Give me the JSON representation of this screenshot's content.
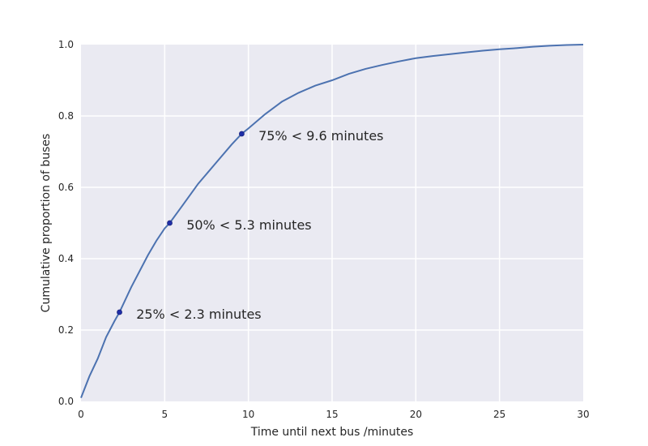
{
  "chart_data": {
    "type": "line",
    "title": "",
    "xlabel": "Time until next bus /minutes",
    "ylabel": "Cumulative proportion of buses",
    "xlim": [
      0,
      30
    ],
    "ylim": [
      0,
      1.0
    ],
    "grid": true,
    "xticks": [
      0,
      5,
      10,
      15,
      20,
      25,
      30
    ],
    "xtick_labels": [
      "0",
      "5",
      "10",
      "15",
      "20",
      "25",
      "30"
    ],
    "yticks": [
      0,
      0.2,
      0.4,
      0.6,
      0.8,
      1.0
    ],
    "ytick_labels": [
      "0.0",
      "0.2",
      "0.4",
      "0.6",
      "0.8",
      "1.0"
    ],
    "series": [
      {
        "color": "#4c72b0",
        "x": [
          0,
          0.5,
          1,
          1.5,
          2,
          2.3,
          3,
          4,
          4.5,
          5,
          5.3,
          6,
          7,
          8,
          9,
          9.6,
          10,
          11,
          12,
          13,
          14,
          15,
          16,
          17,
          18,
          19,
          20,
          21,
          22,
          23,
          24,
          25,
          26,
          27,
          28,
          29,
          30
        ],
        "y": [
          0.01,
          0.07,
          0.12,
          0.18,
          0.225,
          0.25,
          0.32,
          0.41,
          0.45,
          0.485,
          0.5,
          0.545,
          0.61,
          0.665,
          0.72,
          0.75,
          0.765,
          0.805,
          0.84,
          0.865,
          0.885,
          0.9,
          0.918,
          0.932,
          0.943,
          0.953,
          0.962,
          0.968,
          0.973,
          0.978,
          0.983,
          0.987,
          0.99,
          0.994,
          0.997,
          0.999,
          1.0
        ]
      }
    ],
    "markers": [
      {
        "x": 2.3,
        "y": 0.25
      },
      {
        "x": 5.3,
        "y": 0.5
      },
      {
        "x": 9.6,
        "y": 0.75
      }
    ],
    "annotations": [
      {
        "text": "25% < 2.3 minutes",
        "x": 3.3,
        "y": 0.245
      },
      {
        "text": "50% < 5.3 minutes",
        "x": 6.3,
        "y": 0.495
      },
      {
        "text": "75% < 9.6 minutes",
        "x": 10.6,
        "y": 0.745
      }
    ],
    "colors": {
      "background": "#eaeaf2",
      "grid": "#ffffff",
      "line": "#4c72b0",
      "marker": "#1f2fa8"
    }
  }
}
